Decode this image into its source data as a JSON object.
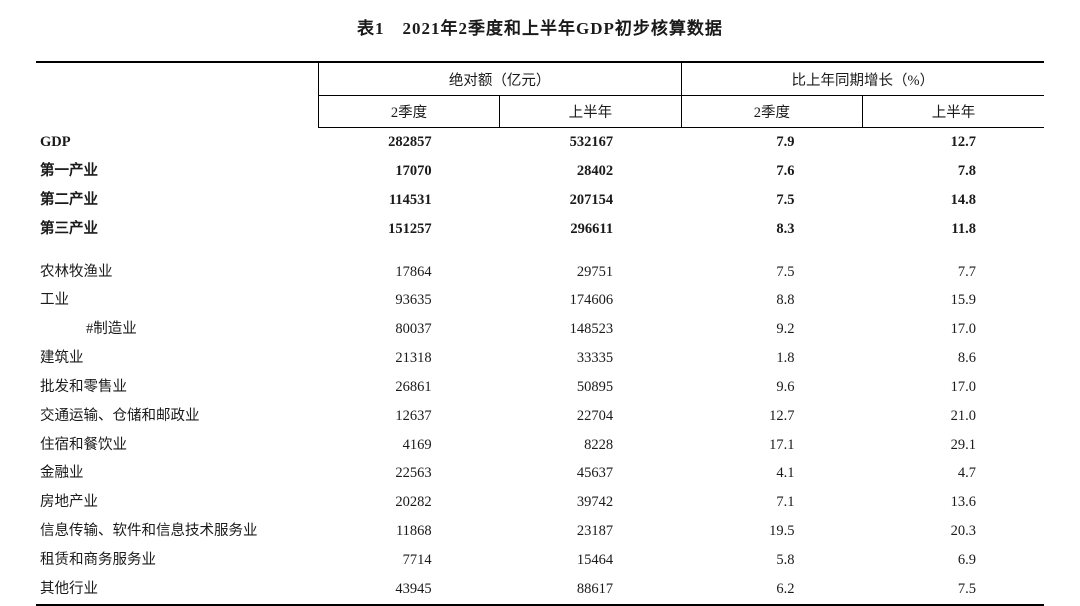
{
  "title": "表1　2021年2季度和上半年GDP初步核算数据",
  "header": {
    "group1": "绝对额（亿元）",
    "group2": "比上年同期增长（%）",
    "sub1": "2季度",
    "sub2": "上半年",
    "sub3": "2季度",
    "sub4": "上半年"
  },
  "rows": {
    "r0": {
      "name": "GDP",
      "a": "282857",
      "b": "532167",
      "c": "7.9",
      "d": "12.7"
    },
    "r1": {
      "name": "第一产业",
      "a": "17070",
      "b": "28402",
      "c": "7.6",
      "d": "7.8"
    },
    "r2": {
      "name": "第二产业",
      "a": "114531",
      "b": "207154",
      "c": "7.5",
      "d": "14.8"
    },
    "r3": {
      "name": "第三产业",
      "a": "151257",
      "b": "296611",
      "c": "8.3",
      "d": "11.8"
    },
    "r4": {
      "name": "农林牧渔业",
      "a": "17864",
      "b": "29751",
      "c": "7.5",
      "d": "7.7"
    },
    "r5": {
      "name": "工业",
      "a": "93635",
      "b": "174606",
      "c": "8.8",
      "d": "15.9"
    },
    "r6": {
      "name": "#制造业",
      "a": "80037",
      "b": "148523",
      "c": "9.2",
      "d": "17.0"
    },
    "r7": {
      "name": "建筑业",
      "a": "21318",
      "b": "33335",
      "c": "1.8",
      "d": "8.6"
    },
    "r8": {
      "name": "批发和零售业",
      "a": "26861",
      "b": "50895",
      "c": "9.6",
      "d": "17.0"
    },
    "r9": {
      "name": "交通运输、仓储和邮政业",
      "a": "12637",
      "b": "22704",
      "c": "12.7",
      "d": "21.0"
    },
    "r10": {
      "name": "住宿和餐饮业",
      "a": "4169",
      "b": "8228",
      "c": "17.1",
      "d": "29.1"
    },
    "r11": {
      "name": "金融业",
      "a": "22563",
      "b": "45637",
      "c": "4.1",
      "d": "4.7"
    },
    "r12": {
      "name": "房地产业",
      "a": "20282",
      "b": "39742",
      "c": "7.1",
      "d": "13.6"
    },
    "r13": {
      "name": "信息传输、软件和信息技术服务业",
      "a": "11868",
      "b": "23187",
      "c": "19.5",
      "d": "20.3"
    },
    "r14": {
      "name": "租赁和商务服务业",
      "a": "7714",
      "b": "15464",
      "c": "5.8",
      "d": "6.9"
    },
    "r15": {
      "name": "其他行业",
      "a": "43945",
      "b": "88617",
      "c": "6.2",
      "d": "7.5"
    }
  },
  "style": {
    "text_color": "#1a1a1a",
    "background_color": "#ffffff",
    "title_fontsize": 17,
    "body_fontsize": 14.5,
    "rule_thick": 2,
    "rule_thin": 1
  }
}
